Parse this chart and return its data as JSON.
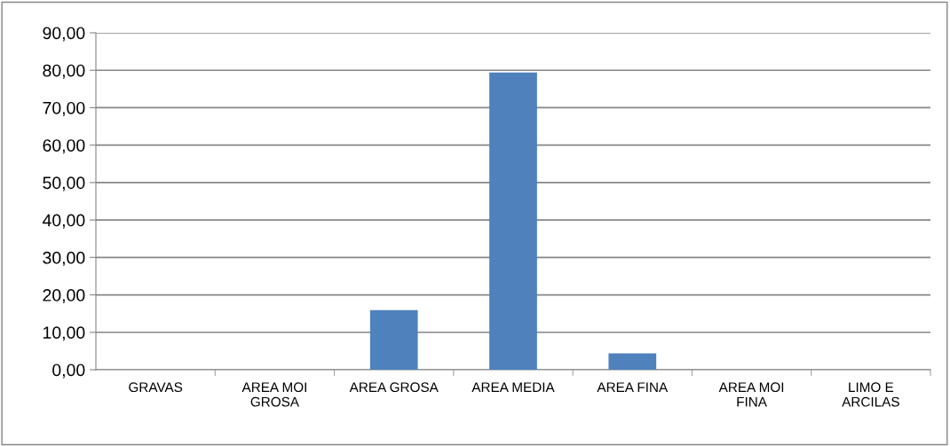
{
  "chart_data": {
    "type": "bar",
    "categories": [
      "GRAVAS",
      "AREA MOI\nGROSA",
      "AREA GROSA",
      "AREA MEDIA",
      "AREA FINA",
      "AREA MOI\nFINA",
      "LIMO E\nARCILAS"
    ],
    "values": [
      0,
      0,
      15.9,
      79.4,
      4.4,
      0,
      0
    ],
    "color": "#4f81bd",
    "ylim": [
      0,
      90
    ],
    "yticks": [
      {
        "value": 0,
        "label": "0,00"
      },
      {
        "value": 10,
        "label": "10,00"
      },
      {
        "value": 20,
        "label": "20,00"
      },
      {
        "value": 30,
        "label": "30,00"
      },
      {
        "value": 40,
        "label": "40,00"
      },
      {
        "value": 50,
        "label": "50,00"
      },
      {
        "value": 60,
        "label": "60,00"
      },
      {
        "value": 70,
        "label": "70,00"
      },
      {
        "value": 80,
        "label": "80,00"
      },
      {
        "value": 90,
        "label": "90,00"
      }
    ],
    "grid": "y"
  }
}
